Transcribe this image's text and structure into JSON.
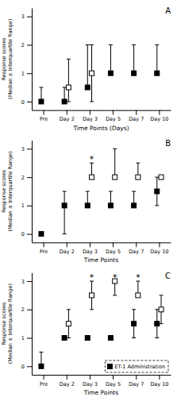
{
  "chart_data": [
    {
      "type": "scatter",
      "title": "A",
      "xlabel": "Time Points (Days)",
      "ylabel": "Response scores\n(Median ± Interquartile Range)",
      "categories": [
        "Pre",
        "Day 2",
        "Day 3",
        "Day 5",
        "Day 7",
        "Day 10"
      ],
      "ylim": [
        -0.3,
        3.3
      ],
      "yticks": [
        0,
        1,
        2,
        3
      ],
      "grid": false,
      "series": [
        {
          "color": "#000000",
          "marker": "filled-square",
          "values": [
            0.0,
            0.0,
            0.5,
            1.0,
            1.0,
            1.0
          ],
          "low": [
            0.0,
            0.0,
            0.5,
            1.0,
            1.0,
            1.0
          ],
          "high": [
            0.5,
            0.5,
            2.0,
            2.0,
            2.0,
            2.0
          ]
        },
        {
          "color": "#000000",
          "marker": "open-square",
          "values": [
            null,
            0.5,
            1.0,
            null,
            null,
            null
          ],
          "low": [
            null,
            0.0,
            0.0,
            null,
            null,
            null
          ],
          "high": [
            null,
            1.5,
            2.0,
            null,
            null,
            null
          ]
        }
      ]
    },
    {
      "type": "scatter",
      "title": "B",
      "xlabel": "Time Points",
      "ylabel": "Response scores\n(Median ± Interquartile Range)",
      "categories": [
        "Pre",
        "Day 2",
        "Day 3",
        "Day 5",
        "Day 7",
        "Day 10"
      ],
      "ylim": [
        -0.3,
        3.3
      ],
      "yticks": [
        0,
        1,
        2,
        3
      ],
      "grid": false,
      "series": [
        {
          "color": "#000000",
          "marker": "filled-square",
          "values": [
            0.0,
            1.0,
            1.0,
            1.0,
            1.0,
            1.5
          ],
          "low": [
            0.0,
            0.0,
            1.0,
            1.0,
            1.0,
            1.0
          ],
          "high": [
            0.0,
            1.5,
            1.5,
            1.5,
            1.5,
            2.0
          ]
        },
        {
          "color": "#000000",
          "marker": "open-square",
          "values": [
            null,
            null,
            2.0,
            2.0,
            2.0,
            2.0
          ],
          "low": [
            null,
            null,
            2.0,
            2.0,
            2.0,
            2.0
          ],
          "high": [
            null,
            null,
            2.5,
            3.0,
            2.5,
            2.0
          ]
        }
      ],
      "annotations": [
        {
          "text": "*",
          "category": "Day 3"
        }
      ]
    },
    {
      "type": "scatter",
      "title": "C",
      "xlabel": "Time Points",
      "ylabel": "Response scores\n(Median ± Interquartile Range)",
      "categories": [
        "Pre",
        "Day 2",
        "Day 3",
        "Day 5",
        "Day 7",
        "Day 10"
      ],
      "ylim": [
        -0.3,
        3.3
      ],
      "yticks": [
        0,
        1,
        2,
        3
      ],
      "grid": false,
      "legend": "lower right",
      "series": [
        {
          "name": "ET-1 Administration",
          "color": "#000000",
          "marker": "filled-square",
          "values": [
            0.0,
            1.0,
            1.0,
            1.0,
            1.5,
            1.5
          ],
          "low": [
            0.0,
            1.0,
            1.0,
            1.0,
            1.0,
            1.0
          ],
          "high": [
            0.5,
            1.0,
            1.0,
            1.0,
            2.0,
            2.0
          ]
        },
        {
          "color": "#000000",
          "marker": "open-square",
          "values": [
            null,
            1.5,
            2.5,
            3.0,
            2.5,
            2.0
          ],
          "low": [
            null,
            1.0,
            2.0,
            2.5,
            2.5,
            1.5
          ],
          "high": [
            null,
            2.0,
            3.0,
            3.0,
            3.0,
            2.5
          ]
        }
      ],
      "annotations": [
        {
          "text": "*",
          "category": "Day 3"
        },
        {
          "text": "*",
          "category": "Day 5"
        },
        {
          "text": "*",
          "category": "Day 7"
        }
      ]
    }
  ]
}
